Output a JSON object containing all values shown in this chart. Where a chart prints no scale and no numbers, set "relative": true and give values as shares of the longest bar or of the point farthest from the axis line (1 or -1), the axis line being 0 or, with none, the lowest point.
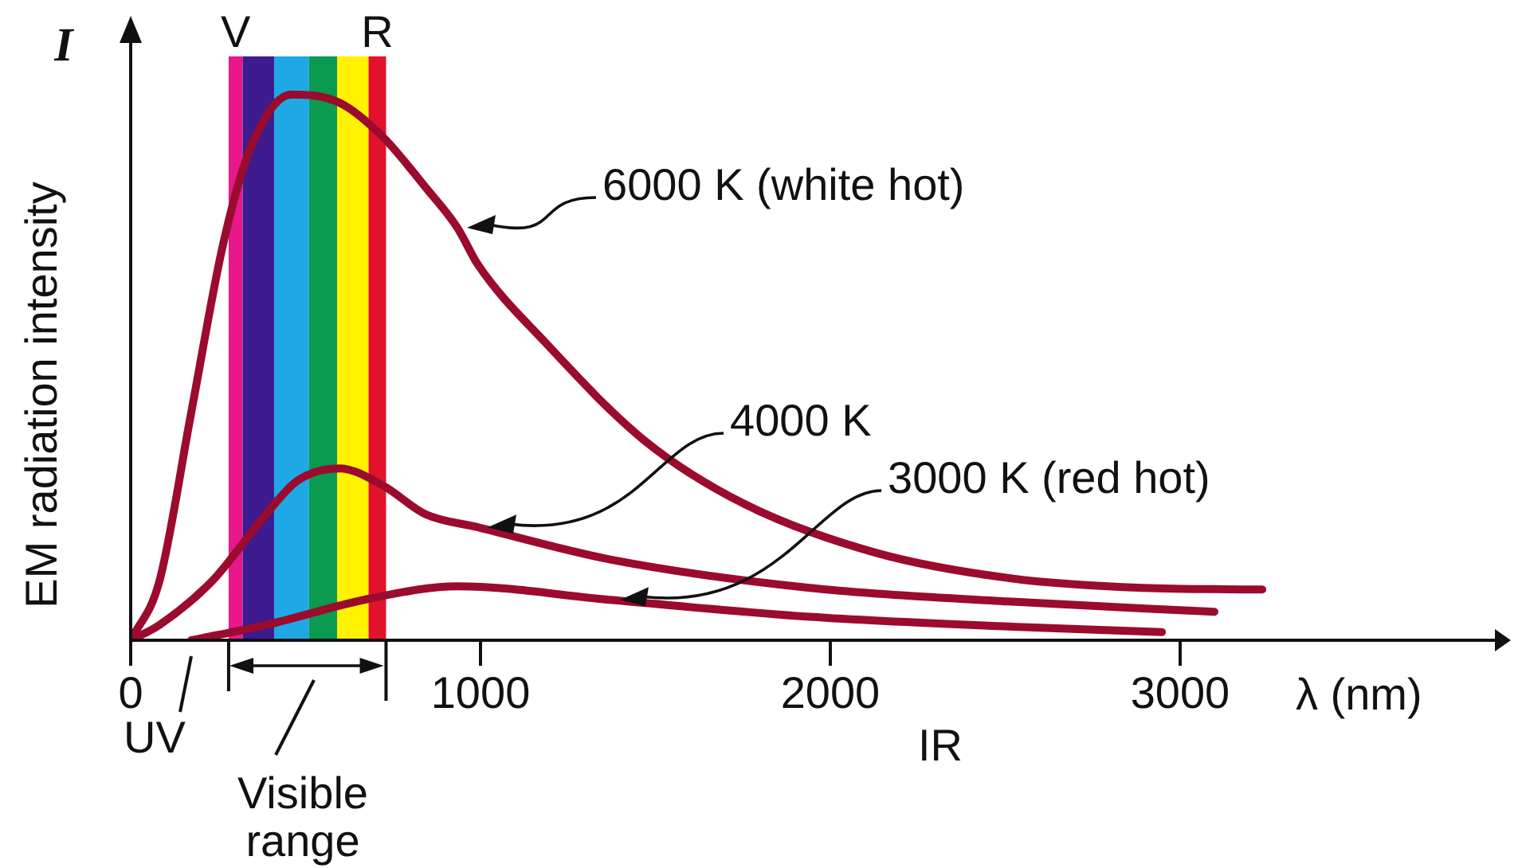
{
  "chart_data": {
    "type": "line",
    "relative": true,
    "ylabel": "EM radiation intensity",
    "xlabel": "λ (nm)",
    "xlim": [
      0,
      3900
    ],
    "xticks": [
      0,
      1000,
      2000,
      3000
    ],
    "grid": false,
    "marker": "none",
    "line_style": "solid",
    "series": [
      {
        "name": "6000 K (white hot)",
        "color": "#9b0b2e",
        "x": [
          0,
          82,
          173,
          264,
          342,
          460,
          597,
          720,
          843,
          934,
          993,
          1185,
          1467,
          1754,
          2132,
          2510,
          2893,
          3235
        ],
        "values": [
          0,
          0.108,
          0.417,
          0.725,
          0.901,
          1,
          0.985,
          0.923,
          0.83,
          0.756,
          0.688,
          0.546,
          0.367,
          0.25,
          0.16,
          0.114,
          0.096,
          0.093
        ]
      },
      {
        "name": "4000 K",
        "color": "#9b0b2e",
        "x": [
          0,
          82,
          232,
          387,
          478,
          597,
          720,
          843,
          993,
          1371,
          1941,
          2510,
          3098
        ],
        "values": [
          0,
          0.028,
          0.108,
          0.231,
          0.293,
          0.315,
          0.284,
          0.231,
          0.207,
          0.148,
          0.096,
          0.071,
          0.052
        ]
      },
      {
        "name": "3000 K (red hot)",
        "color": "#9b0b2e",
        "x": [
          173,
          387,
          688,
          934,
          1371,
          1941,
          2510,
          2948
        ],
        "values": [
          0,
          0.028,
          0.077,
          0.099,
          0.074,
          0.043,
          0.025,
          0.015
        ]
      }
    ],
    "bands": [
      {
        "axis": "x",
        "from": 280,
        "to": 320,
        "color": "#e8178a",
        "label": "V"
      },
      {
        "axis": "x",
        "from": 320,
        "to": 410,
        "color": "#3d1a8e",
        "label": null
      },
      {
        "axis": "x",
        "from": 410,
        "to": 510,
        "color": "#1ea8e6",
        "label": null
      },
      {
        "axis": "x",
        "from": 510,
        "to": 590,
        "color": "#0a9a50",
        "label": null
      },
      {
        "axis": "x",
        "from": 590,
        "to": 680,
        "color": "#fff200",
        "label": null
      },
      {
        "axis": "x",
        "from": 680,
        "to": 730,
        "color": "#e3122c",
        "label": "R"
      }
    ],
    "annotations": [
      "I",
      "UV",
      "Visible range",
      "IR"
    ]
  }
}
